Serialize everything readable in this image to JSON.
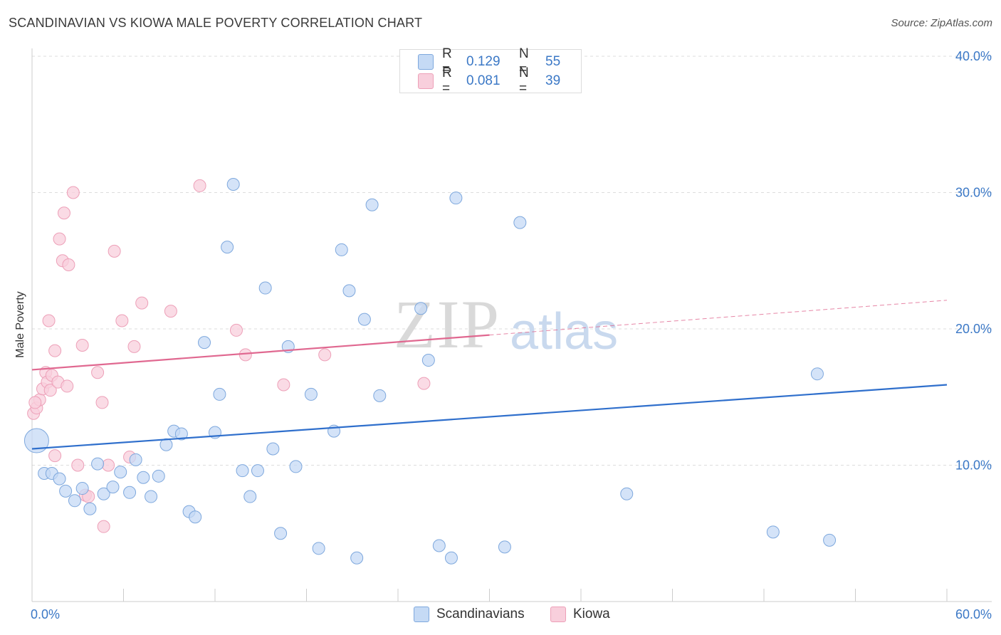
{
  "title": "SCANDINAVIAN VS KIOWA MALE POVERTY CORRELATION CHART",
  "source": "Source: ZipAtlas.com",
  "watermark": {
    "zip": "ZIP",
    "atlas": "atlas"
  },
  "colors": {
    "blue_fill": "#c5daf5",
    "blue_stroke": "#7ea8dd",
    "blue_line": "#2f6fcc",
    "pink_fill": "#f8cfdc",
    "pink_stroke": "#eda0b8",
    "pink_line": "#e06890",
    "tick_text": "#3b78c6",
    "grid": "#dddddd"
  },
  "legend_top": [
    {
      "series": "Scandinavians",
      "r_label": "R =",
      "r_value": "0.129",
      "n_label": "N =",
      "n_value": "55"
    },
    {
      "series": "Kiowa",
      "r_label": "R =",
      "r_value": "0.081",
      "n_label": "N =",
      "n_value": "39"
    }
  ],
  "legend_bottom": [
    "Scandinavians",
    "Kiowa"
  ],
  "chart_data": {
    "type": "scatter",
    "title": "SCANDINAVIAN VS KIOWA MALE POVERTY CORRELATION CHART",
    "xlabel": "",
    "ylabel": "Male Poverty",
    "xlim": [
      0,
      60
    ],
    "ylim": [
      0,
      40
    ],
    "x_tick_labels": [
      "0.0%",
      "60.0%"
    ],
    "y_ticks": [
      10,
      20,
      30,
      40
    ],
    "y_tick_labels": [
      "10.0%",
      "20.0%",
      "30.0%",
      "40.0%"
    ],
    "grid": true,
    "series": [
      {
        "name": "Scandinavians",
        "color": "blue",
        "r": 0.129,
        "n": 55,
        "trend": {
          "x0": 0,
          "y0": 11.2,
          "x1": 60,
          "y1": 15.9,
          "dashed_from": null
        },
        "points": [
          [
            0.3,
            11.8,
            "large"
          ],
          [
            0.8,
            9.4
          ],
          [
            1.3,
            9.4
          ],
          [
            1.8,
            9.0
          ],
          [
            2.2,
            8.1
          ],
          [
            2.8,
            7.4
          ],
          [
            3.3,
            8.3
          ],
          [
            3.8,
            6.8
          ],
          [
            4.3,
            10.1
          ],
          [
            4.7,
            7.9
          ],
          [
            5.3,
            8.4
          ],
          [
            5.8,
            9.5
          ],
          [
            6.4,
            8.0
          ],
          [
            6.8,
            10.4
          ],
          [
            7.3,
            9.1
          ],
          [
            7.8,
            7.7
          ],
          [
            8.3,
            9.2
          ],
          [
            8.8,
            11.5
          ],
          [
            9.3,
            12.5
          ],
          [
            9.8,
            12.3
          ],
          [
            10.3,
            6.6
          ],
          [
            10.7,
            6.2
          ],
          [
            11.3,
            19.0
          ],
          [
            12.0,
            12.4
          ],
          [
            12.3,
            15.2
          ],
          [
            12.8,
            26.0
          ],
          [
            13.2,
            30.6
          ],
          [
            13.8,
            9.6
          ],
          [
            14.3,
            7.7
          ],
          [
            14.8,
            9.6
          ],
          [
            15.3,
            23.0
          ],
          [
            15.8,
            11.2
          ],
          [
            16.3,
            5.0
          ],
          [
            16.8,
            18.7
          ],
          [
            17.3,
            9.9
          ],
          [
            18.3,
            15.2
          ],
          [
            18.8,
            3.9
          ],
          [
            19.8,
            12.5
          ],
          [
            20.3,
            25.8
          ],
          [
            20.8,
            22.8
          ],
          [
            21.3,
            3.2
          ],
          [
            21.8,
            20.7
          ],
          [
            22.3,
            29.1
          ],
          [
            22.8,
            15.1
          ],
          [
            25.5,
            21.5
          ],
          [
            26.0,
            17.7
          ],
          [
            26.7,
            4.1
          ],
          [
            27.5,
            3.2
          ],
          [
            27.8,
            29.6
          ],
          [
            31.0,
            4.0
          ],
          [
            32.0,
            27.8
          ],
          [
            39.0,
            7.9
          ],
          [
            48.6,
            5.1
          ],
          [
            51.5,
            16.7
          ],
          [
            52.3,
            4.5
          ]
        ]
      },
      {
        "name": "Kiowa",
        "color": "pink",
        "r": 0.081,
        "n": 39,
        "trend": {
          "x0": 0,
          "y0": 17.0,
          "x1": 60,
          "y1": 22.1,
          "dashed_from": 30
        },
        "points": [
          [
            0.1,
            13.8
          ],
          [
            0.3,
            14.2
          ],
          [
            0.5,
            14.8
          ],
          [
            0.7,
            15.6
          ],
          [
            0.9,
            16.8
          ],
          [
            1.0,
            16.1
          ],
          [
            1.1,
            20.6
          ],
          [
            1.2,
            15.5
          ],
          [
            1.3,
            16.6
          ],
          [
            1.5,
            10.7
          ],
          [
            1.5,
            18.4
          ],
          [
            1.7,
            16.1
          ],
          [
            1.8,
            26.6
          ],
          [
            2.0,
            25.0
          ],
          [
            2.1,
            28.5
          ],
          [
            2.3,
            15.8
          ],
          [
            2.4,
            24.7
          ],
          [
            2.7,
            30.0
          ],
          [
            3.0,
            10.0
          ],
          [
            3.3,
            18.8
          ],
          [
            3.5,
            7.8
          ],
          [
            3.7,
            7.7
          ],
          [
            4.3,
            16.8
          ],
          [
            4.6,
            14.6
          ],
          [
            4.7,
            5.5
          ],
          [
            5.0,
            10.0
          ],
          [
            5.4,
            25.7
          ],
          [
            5.9,
            20.6
          ],
          [
            6.4,
            10.6
          ],
          [
            6.7,
            18.7
          ],
          [
            7.2,
            21.9
          ],
          [
            9.1,
            21.3
          ],
          [
            11.0,
            30.5
          ],
          [
            13.4,
            19.9
          ],
          [
            14.0,
            18.1
          ],
          [
            16.5,
            15.9
          ],
          [
            19.2,
            18.1
          ],
          [
            25.7,
            16.0
          ],
          [
            0.2,
            14.6
          ]
        ]
      }
    ]
  }
}
